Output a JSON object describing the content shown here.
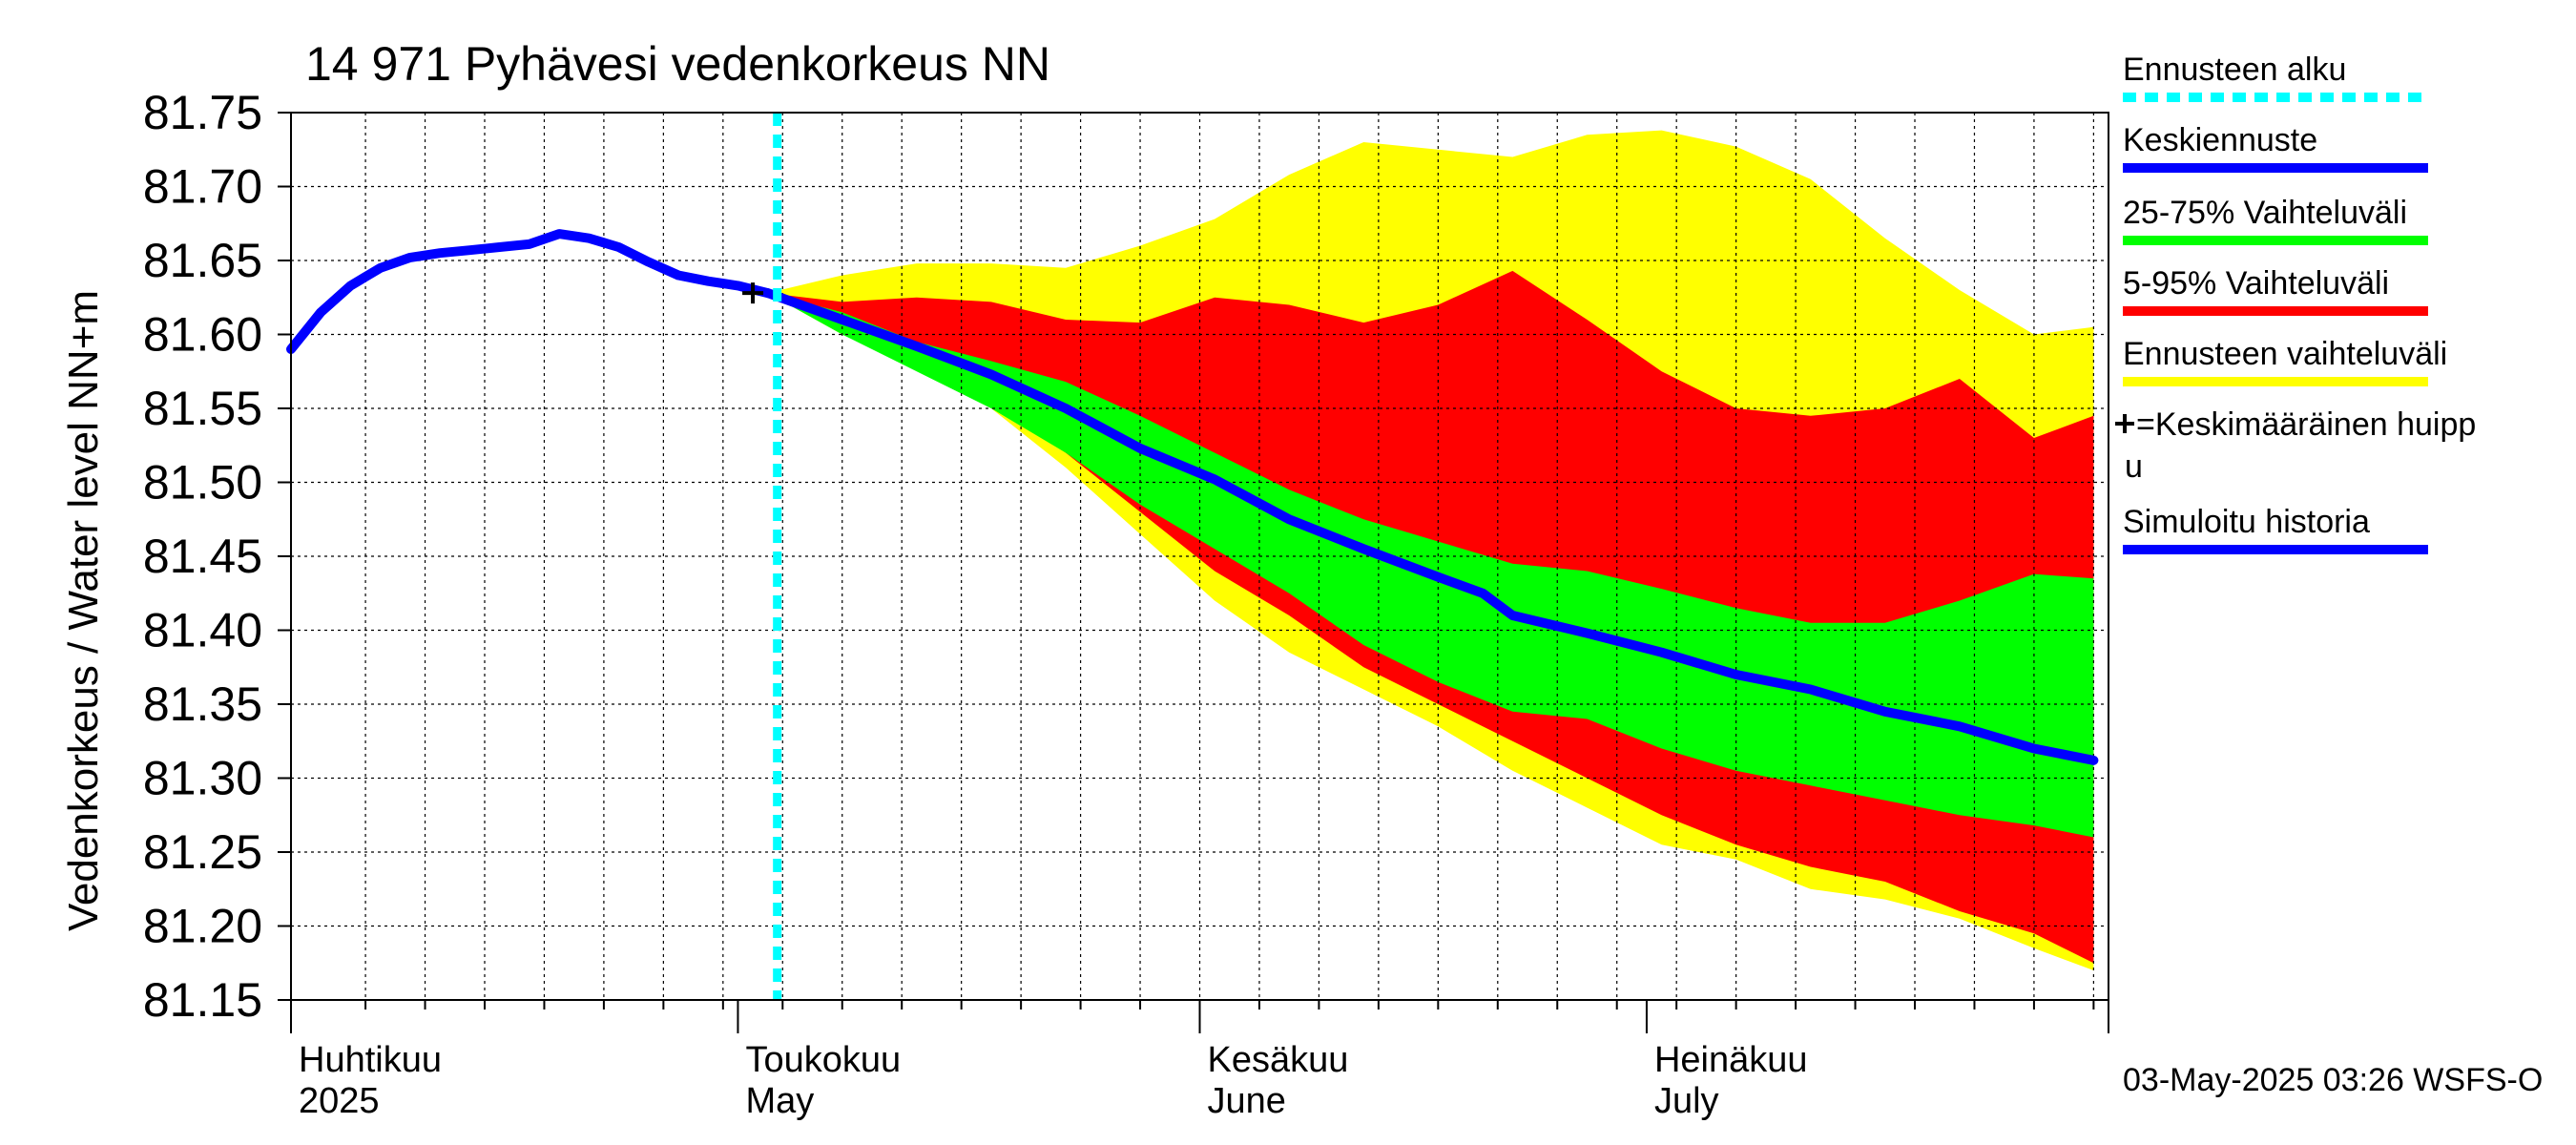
{
  "chart_data": {
    "type": "area",
    "title": "14 971 Pyhävesi vedenkorkeus NN",
    "ylabel": "Vedenkorkeus / Water level    NN+m",
    "xlabel": "",
    "ylim": [
      81.15,
      81.75
    ],
    "y_ticks": [
      "81.75",
      "81.70",
      "81.65",
      "81.60",
      "81.55",
      "81.50",
      "81.45",
      "81.40",
      "81.35",
      "81.30",
      "81.25",
      "81.20",
      "81.15"
    ],
    "x_range": [
      "2025-04-01",
      "2025-07-31"
    ],
    "grid": true,
    "x_labels": [
      {
        "date": "2025-04-01",
        "line1": "Huhtikuu",
        "line2": "2025"
      },
      {
        "date": "2025-05-01",
        "line1": "Toukokuu",
        "line2": "May"
      },
      {
        "date": "2025-06-01",
        "line1": "Kesäkuu",
        "line2": "June"
      },
      {
        "date": "2025-07-01",
        "line1": "Heinäkuu",
        "line2": "July"
      }
    ],
    "forecast_start": "2025-05-03",
    "mean_peak": {
      "date": "2025-05-02",
      "value": 81.628
    },
    "history": {
      "name": "Simuloitu historia",
      "x": [
        "2025-04-01",
        "2025-04-03",
        "2025-04-05",
        "2025-04-07",
        "2025-04-09",
        "2025-04-11",
        "2025-04-13",
        "2025-04-15",
        "2025-04-17",
        "2025-04-19",
        "2025-04-21",
        "2025-04-23",
        "2025-04-25",
        "2025-04-27",
        "2025-04-29",
        "2025-05-01",
        "2025-05-03"
      ],
      "values": [
        81.59,
        81.615,
        81.633,
        81.645,
        81.652,
        81.655,
        81.657,
        81.659,
        81.661,
        81.668,
        81.665,
        81.659,
        81.649,
        81.64,
        81.636,
        81.633,
        81.628
      ]
    },
    "series": [
      {
        "name": "Ennusteen vaihteluväli",
        "x": [
          "2025-05-03",
          "2025-05-08",
          "2025-05-13",
          "2025-05-18",
          "2025-05-23",
          "2025-05-28",
          "2025-06-02",
          "2025-06-07",
          "2025-06-12",
          "2025-06-17",
          "2025-06-22",
          "2025-06-27",
          "2025-07-02",
          "2025-07-07",
          "2025-07-12",
          "2025-07-17",
          "2025-07-22",
          "2025-07-27",
          "2025-07-31"
        ],
        "upper": [
          81.628,
          81.64,
          81.648,
          81.648,
          81.645,
          81.66,
          81.678,
          81.708,
          81.73,
          81.725,
          81.72,
          81.735,
          81.738,
          81.727,
          81.705,
          81.665,
          81.63,
          81.6,
          81.605
        ],
        "lower": [
          81.628,
          81.6,
          81.578,
          81.55,
          81.51,
          81.465,
          81.42,
          81.385,
          81.36,
          81.335,
          81.305,
          81.28,
          81.255,
          81.245,
          81.225,
          81.218,
          81.205,
          81.185,
          81.17
        ]
      },
      {
        "name": "5-95% Vaihteluväli",
        "x": [
          "2025-05-03",
          "2025-05-08",
          "2025-05-13",
          "2025-05-18",
          "2025-05-23",
          "2025-05-28",
          "2025-06-02",
          "2025-06-07",
          "2025-06-12",
          "2025-06-17",
          "2025-06-22",
          "2025-06-27",
          "2025-07-02",
          "2025-07-07",
          "2025-07-12",
          "2025-07-17",
          "2025-07-22",
          "2025-07-27",
          "2025-07-31"
        ],
        "upper": [
          81.628,
          81.622,
          81.625,
          81.622,
          81.61,
          81.608,
          81.625,
          81.62,
          81.608,
          81.62,
          81.643,
          81.61,
          81.575,
          81.55,
          81.545,
          81.55,
          81.57,
          81.53,
          81.545
        ],
        "lower": [
          81.628,
          81.605,
          81.585,
          81.555,
          81.52,
          81.48,
          81.44,
          81.41,
          81.375,
          81.35,
          81.325,
          81.3,
          81.275,
          81.255,
          81.24,
          81.23,
          81.21,
          81.195,
          81.175
        ]
      },
      {
        "name": "25-75% Vaihteluväli",
        "x": [
          "2025-05-03",
          "2025-05-08",
          "2025-05-13",
          "2025-05-18",
          "2025-05-23",
          "2025-05-28",
          "2025-06-02",
          "2025-06-07",
          "2025-06-12",
          "2025-06-17",
          "2025-06-22",
          "2025-06-27",
          "2025-07-02",
          "2025-07-07",
          "2025-07-12",
          "2025-07-17",
          "2025-07-22",
          "2025-07-27",
          "2025-07-31"
        ],
        "upper": [
          81.628,
          81.615,
          81.595,
          81.582,
          81.568,
          81.545,
          81.52,
          81.495,
          81.475,
          81.46,
          81.445,
          81.44,
          81.428,
          81.415,
          81.405,
          81.405,
          81.42,
          81.438,
          81.435
        ],
        "lower": [
          81.628,
          81.6,
          81.575,
          81.55,
          81.52,
          81.485,
          81.455,
          81.425,
          81.39,
          81.365,
          81.345,
          81.34,
          81.32,
          81.305,
          81.295,
          81.285,
          81.275,
          81.268,
          81.26
        ]
      },
      {
        "name": "Keskiennuste",
        "x": [
          "2025-05-03",
          "2025-05-08",
          "2025-05-13",
          "2025-05-18",
          "2025-05-23",
          "2025-05-28",
          "2025-06-02",
          "2025-06-07",
          "2025-06-12",
          "2025-06-17",
          "2025-06-20",
          "2025-06-22",
          "2025-06-27",
          "2025-07-02",
          "2025-07-07",
          "2025-07-12",
          "2025-07-17",
          "2025-07-22",
          "2025-07-27",
          "2025-07-31"
        ],
        "values": [
          81.628,
          81.61,
          81.592,
          81.573,
          81.55,
          81.523,
          81.502,
          81.475,
          81.455,
          81.436,
          81.425,
          81.41,
          81.398,
          81.385,
          81.37,
          81.36,
          81.345,
          81.335,
          81.32,
          81.312
        ]
      }
    ]
  },
  "legend": [
    {
      "label": "Ennusteen alku",
      "color": "#00ffff",
      "style": "dotted"
    },
    {
      "label": "Keskiennuste",
      "color": "#0000ff",
      "style": "line"
    },
    {
      "label": "25-75% Vaihteluväli",
      "color": "#00ff00",
      "style": "line"
    },
    {
      "label": "5-95% Vaihteluväli",
      "color": "#ff0000",
      "style": "line"
    },
    {
      "label": "Ennusteen vaihteluväli",
      "color": "#ffff00",
      "style": "line"
    },
    {
      "label": "=Keskimääräinen huipp",
      "label2": "u",
      "color": "#000000",
      "style": "cross"
    },
    {
      "label": "Simuloitu historia",
      "color": "#0000ff",
      "style": "line"
    }
  ],
  "footer": "03-May-2025 03:26 WSFS-O",
  "colors": {
    "envelope": "#ffff00",
    "p5_95": "#ff0000",
    "p25_75": "#00ff00",
    "median": "#0000ff",
    "history": "#0000ff",
    "forecast_start": "#00ffff"
  }
}
